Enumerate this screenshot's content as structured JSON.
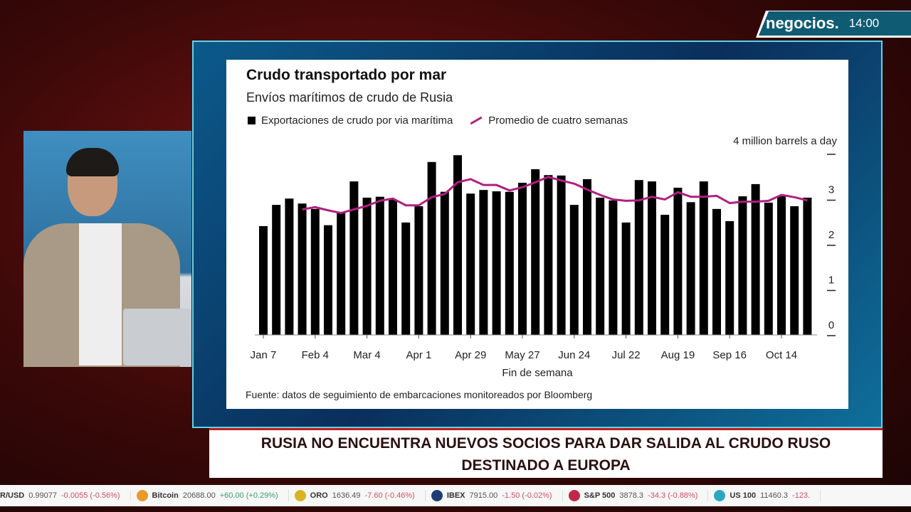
{
  "broadcast": {
    "brand": "negocios.",
    "time": "14:00",
    "headline": "RUSIA NO ENCUENTRA NUEVOS SOCIOS PARA DAR SALIDA AL CRUDO RUSO DESTINADO A EUROPA"
  },
  "ticker": [
    {
      "name": "R/USD",
      "value": "0.99077",
      "change": "-0.0055 (-0.56%)",
      "dir": "neg",
      "color": ""
    },
    {
      "name": "Bitcoin",
      "value": "20688.00",
      "change": "+60.00 (+0.29%)",
      "dir": "pos",
      "color": "#e89a2a"
    },
    {
      "name": "ORO",
      "value": "1636.49",
      "change": "-7.60 (-0.46%)",
      "dir": "neg",
      "color": "#d9b422"
    },
    {
      "name": "IBEX",
      "value": "7915.00",
      "change": "-1.50 (-0.02%)",
      "dir": "neg",
      "color": "#1f3b73"
    },
    {
      "name": "S&P 500",
      "value": "3878.3",
      "change": "-34.3 (-0.88%)",
      "dir": "neg",
      "color": "#c0284a"
    },
    {
      "name": "US 100",
      "value": "11460.3",
      "change": "-123.",
      "dir": "neg",
      "color": "#2aa8c0"
    }
  ],
  "chart_data": {
    "type": "bar",
    "title": "Crudo transportado por mar",
    "subtitle": "Envíos marítimos de crudo de Rusia",
    "legend": [
      "Exportaciones de crudo por via marítima",
      "Promedio de cuatro semanas"
    ],
    "ylabel": "4 million barrels a day",
    "xlabel": "Fin de semana",
    "source": "Fuente: datos de seguimiento de embarcaciones monitoreados por Bloomberg",
    "ylim": [
      0,
      4
    ],
    "yticks": [
      "0",
      "1",
      "2",
      "3"
    ],
    "xticks": [
      "Jan 7",
      "Feb 4",
      "Mar 4",
      "Apr 1",
      "Apr 29",
      "May 27",
      "Jun 24",
      "Jul 22",
      "Aug 19",
      "Sep 16",
      "Oct 14"
    ],
    "xtick_every": 4,
    "series": [
      {
        "name": "Exportaciones de crudo por via marítima",
        "color": "#000000",
        "values": [
          2.41,
          2.88,
          3.02,
          2.91,
          2.79,
          2.43,
          2.72,
          3.4,
          3.04,
          3.06,
          3.0,
          2.49,
          2.85,
          3.83,
          3.17,
          3.98,
          3.13,
          3.21,
          3.18,
          3.17,
          3.37,
          3.67,
          3.54,
          3.53,
          2.88,
          3.45,
          3.04,
          2.98,
          2.49,
          3.43,
          3.4,
          2.66,
          3.26,
          2.94,
          3.4,
          2.79,
          2.52,
          3.07,
          3.34,
          2.93,
          3.07,
          2.85,
          3.04
        ]
      },
      {
        "name": "Promedio de cuatro semanas",
        "color": "#b0207f",
        "values": [
          null,
          null,
          null,
          2.78,
          2.83,
          2.76,
          2.7,
          2.78,
          2.86,
          2.97,
          3.02,
          2.87,
          2.87,
          3.05,
          3.12,
          3.38,
          3.45,
          3.32,
          3.32,
          3.2,
          3.27,
          3.38,
          3.5,
          3.42,
          3.35,
          3.22,
          3.1,
          3.0,
          2.97,
          2.98,
          3.06,
          3.0,
          3.16,
          3.06,
          3.06,
          3.08,
          2.92,
          2.95,
          2.95,
          2.97,
          3.1,
          3.05,
          2.98
        ]
      }
    ]
  }
}
